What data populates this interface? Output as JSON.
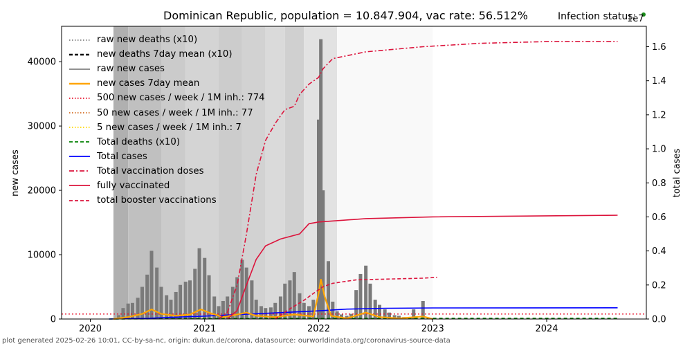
{
  "header": {
    "title": "Dominican Republic, population = 10.847.904, vac rate: 56.512%",
    "status_label": "Infection status:",
    "status_color": "#1a8c1a"
  },
  "footer": {
    "text": "plot generated 2025-02-26 10:01, CC-by-sa-nc, origin: dukun.de/corona, datasource: ourworldindata.org/coronavirus-source-data"
  },
  "chart_data": {
    "type": "bar",
    "x_axis": {
      "ticks": [
        "2020",
        "2021",
        "2022",
        "2023",
        "2024"
      ],
      "range": [
        "2019-10-01",
        "2024-11-15"
      ]
    },
    "y_left": {
      "label": "new cases",
      "range": [
        0,
        45500
      ],
      "ticks": [
        0,
        10000,
        20000,
        30000,
        40000
      ]
    },
    "y_right": {
      "label": "total cases",
      "range": [
        0,
        17200000
      ],
      "ticks": [
        "0.0",
        "0.2",
        "0.4",
        "0.6",
        "0.8",
        "1.0",
        "1.2",
        "1.4",
        "1.6"
      ],
      "exponent": "1e7"
    },
    "grid": false,
    "legend_position": "top-left",
    "legend": [
      {
        "label": "raw new deaths (x10)",
        "color": "#808080",
        "style": "dotted"
      },
      {
        "label": "new deaths 7day mean (x10)",
        "color": "#000000",
        "style": "dashed"
      },
      {
        "label": "raw new cases",
        "color": "#808080",
        "style": "solid"
      },
      {
        "label": "new cases 7day mean",
        "color": "#ffa500",
        "style": "solid"
      },
      {
        "label": "500 new cases / week / 1M inh.: 774",
        "color": "#e8102a",
        "style": "dotted"
      },
      {
        "label": "50 new cases / week / 1M inh.: 77",
        "color": "#d2691e",
        "style": "dotted"
      },
      {
        "label": "5 new cases / week / 1M inh.: 7",
        "color": "#ffd700",
        "style": "dotted"
      },
      {
        "label": "Total deaths (x10)",
        "color": "#008000",
        "style": "dashed"
      },
      {
        "label": "Total cases",
        "color": "#0000ff",
        "style": "solid"
      },
      {
        "label": "Total vaccination doses",
        "color": "#dc143c",
        "style": "dashdot"
      },
      {
        "label": "fully vaccinated",
        "color": "#dc143c",
        "style": "solid"
      },
      {
        "label": "total booster vaccinations",
        "color": "#dc143c",
        "style": "dashed"
      }
    ],
    "thresholds": [
      {
        "label": "500 new cases / week / 1M inh.",
        "value": 774
      }
    ],
    "raw_new_cases_weekly": [
      {
        "date": "2020-04-01",
        "v": 600
      },
      {
        "date": "2020-04-15",
        "v": 1700
      },
      {
        "date": "2020-05-01",
        "v": 2400
      },
      {
        "date": "2020-05-15",
        "v": 2500
      },
      {
        "date": "2020-06-01",
        "v": 3300
      },
      {
        "date": "2020-06-15",
        "v": 5000
      },
      {
        "date": "2020-07-01",
        "v": 6900
      },
      {
        "date": "2020-07-15",
        "v": 10600
      },
      {
        "date": "2020-08-01",
        "v": 8000
      },
      {
        "date": "2020-08-15",
        "v": 5000
      },
      {
        "date": "2020-09-01",
        "v": 3700
      },
      {
        "date": "2020-09-15",
        "v": 3000
      },
      {
        "date": "2020-10-01",
        "v": 4200
      },
      {
        "date": "2020-10-15",
        "v": 5300
      },
      {
        "date": "2020-11-01",
        "v": 5800
      },
      {
        "date": "2020-11-15",
        "v": 6000
      },
      {
        "date": "2020-12-01",
        "v": 7800
      },
      {
        "date": "2020-12-15",
        "v": 11000
      },
      {
        "date": "2021-01-01",
        "v": 9500
      },
      {
        "date": "2021-01-15",
        "v": 6800
      },
      {
        "date": "2021-02-01",
        "v": 3500
      },
      {
        "date": "2021-02-15",
        "v": 2000
      },
      {
        "date": "2021-03-01",
        "v": 2800
      },
      {
        "date": "2021-03-15",
        "v": 3500
      },
      {
        "date": "2021-04-01",
        "v": 5000
      },
      {
        "date": "2021-04-15",
        "v": 6500
      },
      {
        "date": "2021-05-01",
        "v": 9200
      },
      {
        "date": "2021-05-15",
        "v": 8000
      },
      {
        "date": "2021-06-01",
        "v": 6000
      },
      {
        "date": "2021-06-15",
        "v": 3000
      },
      {
        "date": "2021-07-01",
        "v": 2000
      },
      {
        "date": "2021-07-15",
        "v": 1700
      },
      {
        "date": "2021-08-01",
        "v": 1800
      },
      {
        "date": "2021-08-15",
        "v": 2500
      },
      {
        "date": "2021-09-01",
        "v": 3500
      },
      {
        "date": "2021-09-15",
        "v": 5500
      },
      {
        "date": "2021-10-01",
        "v": 6000
      },
      {
        "date": "2021-10-15",
        "v": 7300
      },
      {
        "date": "2021-11-01",
        "v": 4000
      },
      {
        "date": "2021-11-15",
        "v": 2500
      },
      {
        "date": "2021-12-01",
        "v": 2000
      },
      {
        "date": "2021-12-15",
        "v": 3000
      },
      {
        "date": "2022-01-01",
        "v": 31000
      },
      {
        "date": "2022-01-08",
        "v": 43500
      },
      {
        "date": "2022-01-15",
        "v": 20000
      },
      {
        "date": "2022-02-01",
        "v": 9000
      },
      {
        "date": "2022-02-15",
        "v": 2700
      },
      {
        "date": "2022-03-01",
        "v": 1200
      },
      {
        "date": "2022-03-15",
        "v": 700
      },
      {
        "date": "2022-04-01",
        "v": 500
      },
      {
        "date": "2022-04-15",
        "v": 800
      },
      {
        "date": "2022-05-01",
        "v": 4500
      },
      {
        "date": "2022-05-15",
        "v": 7000
      },
      {
        "date": "2022-06-01",
        "v": 8300
      },
      {
        "date": "2022-06-15",
        "v": 5500
      },
      {
        "date": "2022-07-01",
        "v": 3000
      },
      {
        "date": "2022-07-15",
        "v": 2200
      },
      {
        "date": "2022-08-01",
        "v": 1500
      },
      {
        "date": "2022-08-15",
        "v": 1000
      },
      {
        "date": "2022-09-01",
        "v": 600
      },
      {
        "date": "2022-09-15",
        "v": 500
      },
      {
        "date": "2022-10-01",
        "v": 300
      },
      {
        "date": "2022-11-01",
        "v": 1500
      },
      {
        "date": "2022-12-01",
        "v": 2800
      },
      {
        "date": "2023-01-01",
        "v": 100
      }
    ],
    "new_cases_7day_mean": [
      {
        "date": "2020-03-15",
        "v": 0
      },
      {
        "date": "2020-05-01",
        "v": 300
      },
      {
        "date": "2020-06-15",
        "v": 800
      },
      {
        "date": "2020-07-15",
        "v": 1500
      },
      {
        "date": "2020-08-15",
        "v": 800
      },
      {
        "date": "2020-10-01",
        "v": 500
      },
      {
        "date": "2020-11-15",
        "v": 700
      },
      {
        "date": "2020-12-20",
        "v": 1500
      },
      {
        "date": "2021-01-20",
        "v": 900
      },
      {
        "date": "2021-03-01",
        "v": 300
      },
      {
        "date": "2021-04-15",
        "v": 700
      },
      {
        "date": "2021-05-15",
        "v": 1000
      },
      {
        "date": "2021-06-15",
        "v": 500
      },
      {
        "date": "2021-08-15",
        "v": 300
      },
      {
        "date": "2021-10-15",
        "v": 700
      },
      {
        "date": "2021-12-15",
        "v": 400
      },
      {
        "date": "2022-01-01",
        "v": 4000
      },
      {
        "date": "2022-01-08",
        "v": 6200
      },
      {
        "date": "2022-01-20",
        "v": 3500
      },
      {
        "date": "2022-02-10",
        "v": 500
      },
      {
        "date": "2022-04-01",
        "v": 100
      },
      {
        "date": "2022-06-01",
        "v": 1000
      },
      {
        "date": "2022-07-15",
        "v": 300
      },
      {
        "date": "2022-09-15",
        "v": 100
      },
      {
        "date": "2022-12-01",
        "v": 400
      },
      {
        "date": "2023-01-01",
        "v": 0
      }
    ],
    "total_cases": [
      {
        "date": "2020-03-01",
        "v": 0
      },
      {
        "date": "2020-07-01",
        "v": 40000
      },
      {
        "date": "2020-10-01",
        "v": 110000
      },
      {
        "date": "2021-01-01",
        "v": 170000
      },
      {
        "date": "2021-07-01",
        "v": 320000
      },
      {
        "date": "2022-01-01",
        "v": 480000
      },
      {
        "date": "2022-04-01",
        "v": 580000
      },
      {
        "date": "2022-08-01",
        "v": 630000
      },
      {
        "date": "2023-01-01",
        "v": 650000
      },
      {
        "date": "2024-08-15",
        "v": 660000
      }
    ],
    "total_deaths_x10": [
      {
        "date": "2020-03-01",
        "v": 0
      },
      {
        "date": "2021-01-01",
        "v": 25000
      },
      {
        "date": "2022-01-01",
        "v": 42000
      },
      {
        "date": "2023-01-01",
        "v": 44000
      },
      {
        "date": "2024-08-15",
        "v": 44000
      }
    ],
    "total_vaccination_doses": [
      {
        "date": "2021-02-15",
        "v": 0
      },
      {
        "date": "2021-03-15",
        "v": 400000
      },
      {
        "date": "2021-04-15",
        "v": 2000000
      },
      {
        "date": "2021-05-15",
        "v": 5000000
      },
      {
        "date": "2021-06-15",
        "v": 8500000
      },
      {
        "date": "2021-07-15",
        "v": 10500000
      },
      {
        "date": "2021-08-15",
        "v": 11500000
      },
      {
        "date": "2021-09-15",
        "v": 12300000
      },
      {
        "date": "2021-10-15",
        "v": 12500000
      },
      {
        "date": "2021-11-01",
        "v": 13200000
      },
      {
        "date": "2021-12-01",
        "v": 13800000
      },
      {
        "date": "2022-01-01",
        "v": 14200000
      },
      {
        "date": "2022-01-15",
        "v": 14700000
      },
      {
        "date": "2022-02-15",
        "v": 15300000
      },
      {
        "date": "2022-06-01",
        "v": 15700000
      },
      {
        "date": "2022-12-01",
        "v": 16000000
      },
      {
        "date": "2023-06-01",
        "v": 16200000
      },
      {
        "date": "2024-01-01",
        "v": 16300000
      },
      {
        "date": "2024-08-15",
        "v": 16300000
      }
    ],
    "fully_vaccinated": [
      {
        "date": "2021-03-15",
        "v": 0
      },
      {
        "date": "2021-04-15",
        "v": 500000
      },
      {
        "date": "2021-05-15",
        "v": 2000000
      },
      {
        "date": "2021-06-15",
        "v": 3500000
      },
      {
        "date": "2021-07-15",
        "v": 4300000
      },
      {
        "date": "2021-09-01",
        "v": 4700000
      },
      {
        "date": "2021-11-01",
        "v": 5000000
      },
      {
        "date": "2021-12-01",
        "v": 5600000
      },
      {
        "date": "2022-01-01",
        "v": 5700000
      },
      {
        "date": "2022-06-01",
        "v": 5900000
      },
      {
        "date": "2023-01-01",
        "v": 6000000
      },
      {
        "date": "2024-08-15",
        "v": 6100000
      }
    ],
    "total_booster_vaccinations": [
      {
        "date": "2021-08-15",
        "v": 0
      },
      {
        "date": "2021-10-01",
        "v": 600000
      },
      {
        "date": "2021-11-15",
        "v": 1100000
      },
      {
        "date": "2021-12-15",
        "v": 1500000
      },
      {
        "date": "2022-01-15",
        "v": 1900000
      },
      {
        "date": "2022-02-15",
        "v": 2100000
      },
      {
        "date": "2022-05-01",
        "v": 2300000
      },
      {
        "date": "2022-12-01",
        "v": 2400000
      },
      {
        "date": "2023-01-15",
        "v": 2450000
      }
    ]
  }
}
